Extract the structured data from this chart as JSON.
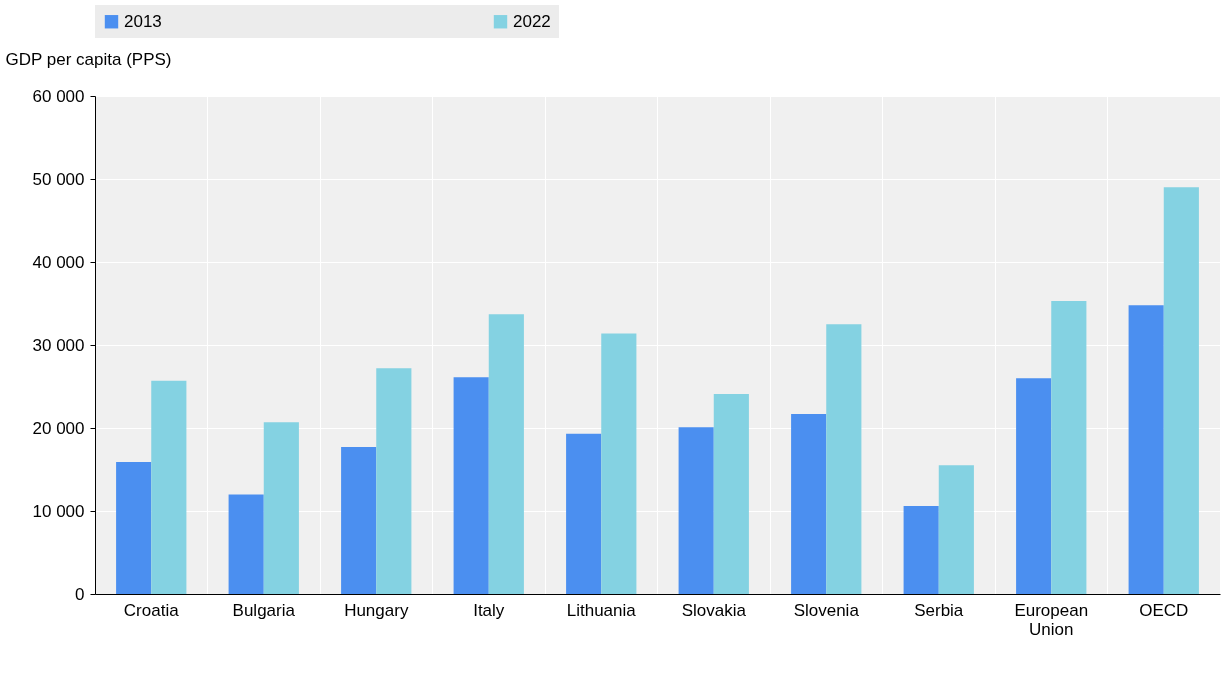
{
  "chart_data": {
    "type": "bar",
    "ylabel": "GDP per capita (PPS)",
    "categories": [
      "Croatia",
      "Bulgaria",
      "Hungary",
      "Italy",
      "Lithuania",
      "Slovakia",
      "Slovenia",
      "Serbia",
      "European Union",
      "OECD"
    ],
    "series": [
      {
        "name": "2013",
        "color": "#4b8ff0",
        "values": [
          15900,
          12000,
          17700,
          26100,
          19300,
          20100,
          21700,
          10600,
          26000,
          34800
        ]
      },
      {
        "name": "2022",
        "color": "#84d2e2",
        "values": [
          25700,
          20700,
          27200,
          33700,
          31400,
          24100,
          32500,
          15500,
          35300,
          49000
        ]
      }
    ],
    "ylim": [
      0,
      60000
    ],
    "yticks": [
      {
        "value": 0,
        "label": "0"
      },
      {
        "value": 10000,
        "label": "10 000"
      },
      {
        "value": 20000,
        "label": "20 000"
      },
      {
        "value": 30000,
        "label": "30 000"
      },
      {
        "value": 40000,
        "label": "40 000"
      },
      {
        "value": 50000,
        "label": "50 000"
      },
      {
        "value": 60000,
        "label": "60 000"
      }
    ],
    "grid": true,
    "legend": "top"
  }
}
